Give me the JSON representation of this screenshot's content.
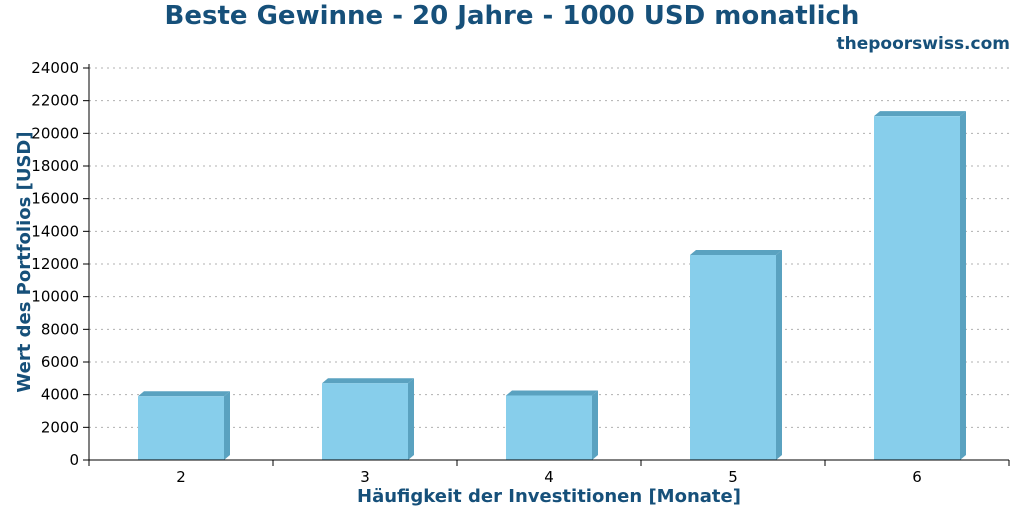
{
  "header": {
    "title": "Beste Gewinne - 20 Jahre - 1000 USD monatlich",
    "watermark": "thepoorswiss.com"
  },
  "colors": {
    "bar_face": "#87ceeb",
    "bar_side": "#5aa2c0",
    "axis_title": "#16507a",
    "grid": "#b0b0b0"
  },
  "chart_data": {
    "type": "bar",
    "title": "Beste Gewinne - 20 Jahre - 1000 USD monatlich",
    "xlabel": "Häufigkeit der Investitionen [Monate]",
    "ylabel": "Wert des Portfolios [USD]",
    "categories": [
      "2",
      "3",
      "4",
      "5",
      "6"
    ],
    "values": [
      3900,
      4700,
      3950,
      12550,
      21050
    ],
    "ylim": [
      0,
      24000
    ],
    "yticks": [
      0,
      2000,
      4000,
      6000,
      8000,
      10000,
      12000,
      14000,
      16000,
      18000,
      20000,
      22000,
      24000
    ],
    "grid": "horizontal-dotted",
    "legend": "none"
  }
}
